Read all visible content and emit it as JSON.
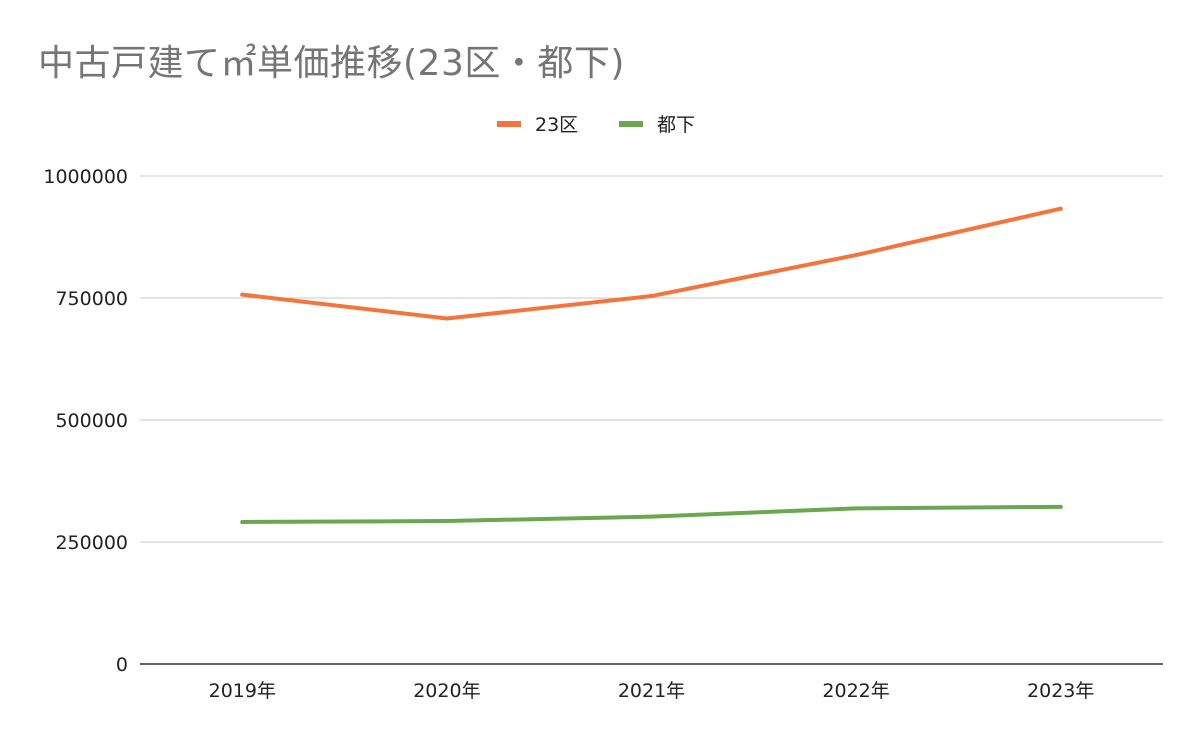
{
  "chart_data": {
    "type": "line",
    "title": "中古戸建て㎡単価推移(23区・都下)",
    "categories": [
      "2019年",
      "2020年",
      "2021年",
      "2022年",
      "2023年"
    ],
    "series": [
      {
        "name": "23区",
        "color": "#f4743b",
        "values": [
          757000,
          708000,
          754000,
          838000,
          933000
        ]
      },
      {
        "name": "都下",
        "color": "#6aa84f",
        "values": [
          291000,
          293000,
          302000,
          319000,
          322000
        ]
      }
    ],
    "y_ticks": [
      0,
      250000,
      500000,
      750000,
      1000000
    ],
    "ylim": [
      0,
      1000000
    ],
    "grid": true,
    "legend_position": "top-center",
    "xlabel": "",
    "ylabel": ""
  }
}
